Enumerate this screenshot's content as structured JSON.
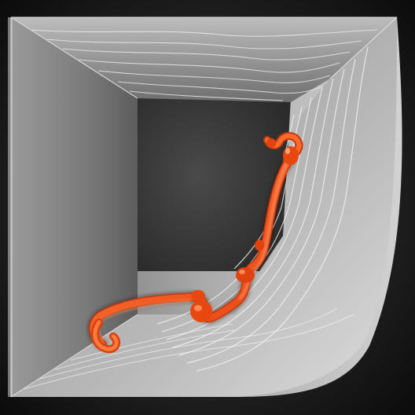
{
  "image": {
    "subject": "render-scene",
    "palette": {
      "background": "#0a0a0a",
      "box_light": "#d6d6d6",
      "box_mid": "#8a8a8a",
      "box_dark": "#3a3a3a",
      "ridge": "#f2f2f2",
      "filament": "#ff5a1f",
      "filament_dark": "#c23a0e",
      "filament_highlight": "#ffb38a"
    }
  }
}
